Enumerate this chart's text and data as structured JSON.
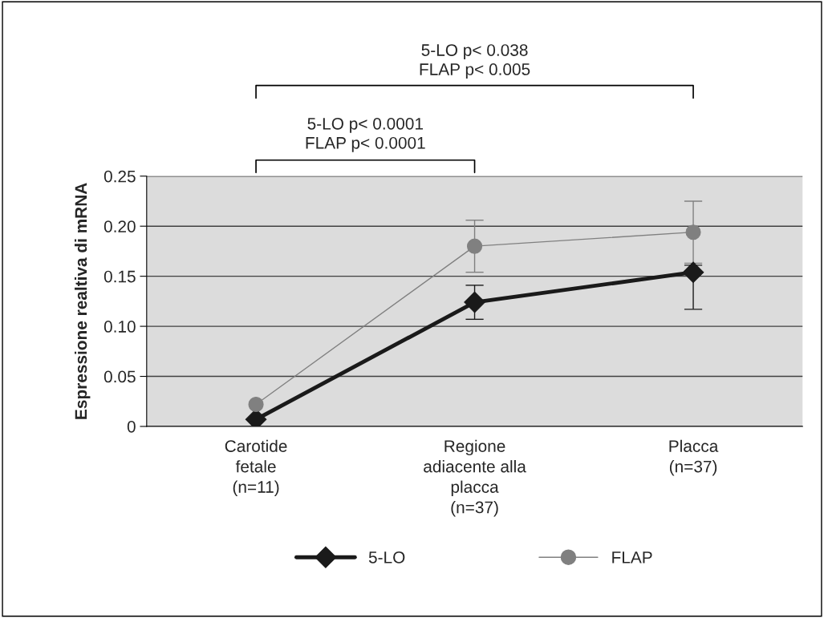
{
  "chart_data": {
    "type": "line",
    "ylabel": "Espressione realtiva di mRNA",
    "categories": [
      "Carotide\nfetale\n(n=11)",
      "Regione\nadiacente alla\nplacca\n(n=37)",
      "Placca\n(n=37)"
    ],
    "series": [
      {
        "name": "5-LO",
        "color": "#1a1a1a",
        "marker": "diamond",
        "values": [
          0.007,
          0.124,
          0.154
        ],
        "errors": [
          null,
          0.017,
          [
            0.117,
            0.161
          ]
        ]
      },
      {
        "name": "FLAP",
        "color": "#808080",
        "marker": "circle",
        "values": [
          0.022,
          0.18,
          0.194
        ],
        "errors": [
          null,
          0.026,
          0.031
        ]
      }
    ],
    "ylim": [
      0,
      0.25
    ],
    "yticks": [
      {
        "value": 0,
        "label": "0"
      },
      {
        "value": 0.05,
        "label": "0.05"
      },
      {
        "value": 0.1,
        "label": "0.10"
      },
      {
        "value": 0.15,
        "label": "0.15"
      },
      {
        "value": 0.2,
        "label": "0.20"
      },
      {
        "value": 0.25,
        "label": "0.25"
      }
    ],
    "grid": "y",
    "legend": "bottom",
    "annotations": [
      "5-LO p< 0.0001\nFLAP p< 0.0001",
      "5-LO p< 0.038\nFLAP p< 0.005"
    ]
  }
}
